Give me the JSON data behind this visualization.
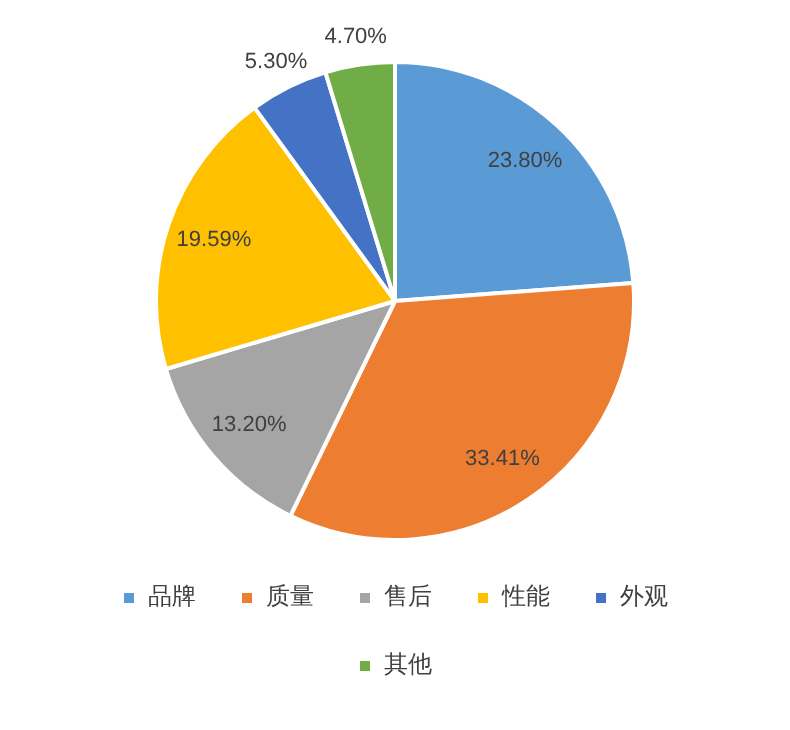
{
  "chart_data": {
    "type": "pie",
    "categories": [
      "品牌",
      "质量",
      "售后",
      "性能",
      "外观",
      "其他"
    ],
    "values": [
      23.8,
      33.41,
      13.2,
      19.59,
      5.3,
      4.7
    ],
    "colors": [
      "#5b9bd5",
      "#ed7d31",
      "#a5a5a5",
      "#ffc000",
      "#4472c4",
      "#70ad47"
    ],
    "value_labels": [
      "23.80%",
      "33.41%",
      "13.20%",
      "19.59%",
      "5.30%",
      "4.70%"
    ],
    "legend": "bottom"
  }
}
